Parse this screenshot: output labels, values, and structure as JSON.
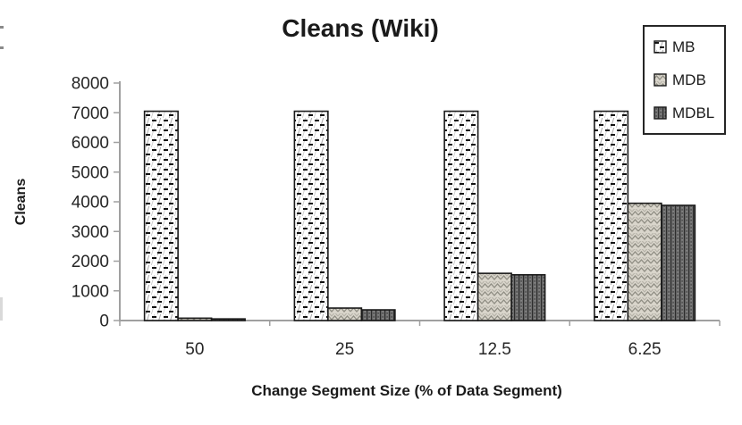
{
  "chart_data": {
    "type": "bar",
    "title": "Cleans (Wiki)",
    "xlabel": "Change Segment Size (% of Data Segment)",
    "ylabel": "Cleans",
    "categories": [
      "50",
      "25",
      "12.5",
      "6.25"
    ],
    "series": [
      {
        "name": "MB",
        "pattern": "mb",
        "values": [
          7050,
          7050,
          7050,
          7050
        ]
      },
      {
        "name": "MDB",
        "pattern": "mdb",
        "values": [
          80,
          420,
          1590,
          3950
        ]
      },
      {
        "name": "MDBL",
        "pattern": "mdbl",
        "values": [
          55,
          360,
          1540,
          3880
        ]
      }
    ],
    "ylim": [
      0,
      8000
    ],
    "y_ticks": [
      0,
      1000,
      2000,
      3000,
      4000,
      5000,
      6000,
      7000,
      8000
    ],
    "grid": false,
    "legend_position": "top-right",
    "colors": {
      "axis": "#a0a0a0",
      "text": "#262626",
      "bar_border": "#1a1a1a",
      "mb_fill": "#ffffff",
      "mdb_fill": "#d9d5cb",
      "mdbl_fill": "#6f6f6f"
    }
  }
}
